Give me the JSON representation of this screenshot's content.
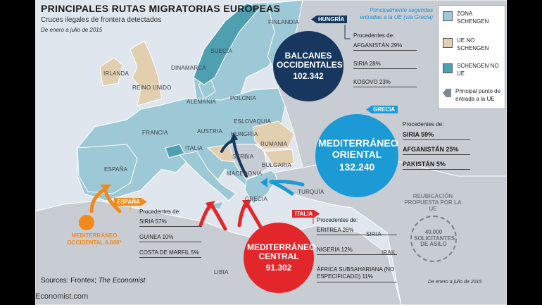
{
  "title": "PRINCIPALES RUTAS MIGRATORIAS EUROPEAS",
  "subtitle": "Cruces ilegales de frontera detectados",
  "period": "De enero a julio de 2015",
  "countries": {
    "finlandia": "FINLANDIA",
    "suecia": "SUECIA",
    "irlanda": "IRLANDA",
    "reino_unido": "REINO UNIDO",
    "dinamarca": "DINAMARCA",
    "alemania": "ALEMANIA",
    "polonia": "POLONIA",
    "francia": "FRANCIA",
    "austria": "AUSTRIA",
    "eslovaquia": "ESLOVAQUIA",
    "hungria": "HUNGRÍA",
    "rumania": "RUMANIA",
    "italia": "ITALIA",
    "serbia": "SERBIA",
    "bulgaria": "BULGARIA",
    "macedonia": "MACEDONIA",
    "espana": "ESPAÑA",
    "grecia": "GRECIA",
    "turquia": "TURQUÍA",
    "siria": "SIRIA",
    "irak": "IRAK",
    "libia": "LIBIA"
  },
  "legend": [
    {
      "label": "ZONA SCHENGEN",
      "color": "#9dc9d6"
    },
    {
      "label": "UE NO SCHENGEN",
      "color": "#e2cfb0"
    },
    {
      "label": "SCHENGEN NO UE",
      "color": "#4e9fb0"
    },
    {
      "label": "Principal punto de entrada a la UE",
      "color": "#808890"
    }
  ],
  "routes": {
    "balcanes": {
      "name": "BALCANES OCCIDENTALES",
      "value": "102.342",
      "entry": "HUNGRÍA",
      "color": "#17375e",
      "note": "Principalmente segundas entradas a la UE (vía Grecia)",
      "header": "Procedentes de:",
      "items": [
        "AFGANISTÁN 29%",
        "SIRIA 28%",
        "KOSOVO 23%"
      ]
    },
    "oriental": {
      "name": "MEDITERRÁNEO ORIENTAL",
      "value": "132.240",
      "entry": "GRECIA",
      "color": "#1b9ad6",
      "header": "Procedentes de:",
      "items": [
        "SIRIA 59%",
        "AFGANISTÁN 25%",
        "PAKISTÁN 5%"
      ]
    },
    "central": {
      "name": "MEDITERRÁNEO CENTRAL",
      "value": "91.302",
      "entry": "ITALIA",
      "color": "#e3262a",
      "header": "Procedentes de:",
      "items": [
        "ERITREA 26%",
        "NIGERIA 12%",
        "ÁFRICA SUBSAHARIANA (NO ESPECIFICADO) 11%"
      ]
    },
    "occidental": {
      "name": "MEDITERRÁNEO OCCIDENTAL",
      "value": "6.698*",
      "entry": "ESPAÑA",
      "color": "#f08a1d",
      "header": "Procedentes de:",
      "items": [
        "SIRIA 57%",
        "GUINEA 10%",
        "COSTA DE MARFIL 5%"
      ]
    }
  },
  "relocation": {
    "label": "REUBICACIÓN PROPUESTA POR LA UE",
    "value": "40.000",
    "caption": "SOLICITANTES DE ASILO"
  },
  "footnote_date": "De enero a julio de 2015",
  "source_prefix": "Sources: Frontex; ",
  "source_italic": "The Economist",
  "brand": "Economist.com"
}
